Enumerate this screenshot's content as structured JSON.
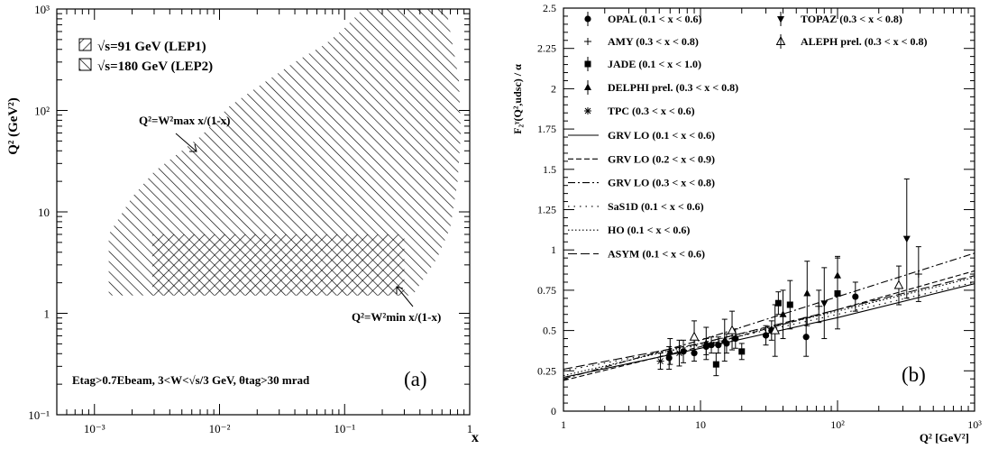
{
  "chart_data": [
    {
      "type": "area",
      "panel_label": "(a)",
      "xlabel": "x",
      "ylabel": "Q² (GeV²)",
      "x_scale": "log",
      "y_scale": "log",
      "xlim": [
        0.0005,
        1
      ],
      "ylim": [
        0.1,
        1000
      ],
      "x_ticks": [
        0.001,
        0.01,
        0.1,
        1
      ],
      "y_ticks": [
        0.1,
        1,
        10,
        100,
        1000
      ],
      "x_tick_labels": [
        "10⁻³",
        "10⁻²",
        "10⁻¹",
        "1"
      ],
      "y_tick_labels": [
        "10⁻¹",
        "1",
        "10",
        "10²",
        "10³"
      ],
      "legend": [
        {
          "label": "√s=91 GeV (LEP1)",
          "hatch": "backslash"
        },
        {
          "label": "√s=180 GeV (LEP2)",
          "hatch": "slash"
        }
      ],
      "annotations": {
        "upper_curve": "Q²=W²max x/(1-x)",
        "lower_curve": "Q²=W²min x/(1-x)",
        "cuts": "Etag>0.7Ebeam, 3<W<√s/3 GeV, θtag>30 mrad"
      },
      "series": [
        {
          "name": "√s=91 GeV (LEP1)",
          "hatch": "backslash",
          "boundary": [
            {
              "x": 0.0029,
              "y": 1.5
            },
            {
              "x": 0.3,
              "y": 1.5
            },
            {
              "x": 0.3,
              "y": 6
            },
            {
              "x": 0.0029,
              "y": 6
            }
          ]
        },
        {
          "name": "√s=180 GeV (LEP2)",
          "hatch": "slash",
          "boundary": [
            {
              "x": 0.0013,
              "y": 1.5
            },
            {
              "x": 0.0013,
              "y": 6
            },
            {
              "x": 0.002,
              "y": 14
            },
            {
              "x": 0.003,
              "y": 25
            },
            {
              "x": 0.007,
              "y": 55
            },
            {
              "x": 0.012,
              "y": 110
            },
            {
              "x": 0.02,
              "y": 170
            },
            {
              "x": 0.04,
              "y": 300
            },
            {
              "x": 0.07,
              "y": 450
            },
            {
              "x": 0.1,
              "y": 650
            },
            {
              "x": 0.14,
              "y": 1000
            },
            {
              "x": 0.65,
              "y": 1000
            },
            {
              "x": 0.82,
              "y": 200
            },
            {
              "x": 0.85,
              "y": 60
            },
            {
              "x": 0.8,
              "y": 20
            },
            {
              "x": 0.7,
              "y": 7
            },
            {
              "x": 0.55,
              "y": 3.5
            },
            {
              "x": 0.35,
              "y": 1.5
            }
          ]
        }
      ]
    },
    {
      "type": "scatter",
      "panel_label": "(b)",
      "xlabel": "Q² [GeV²]",
      "ylabel": "F₂ᵞ(Q²,udsc) / α",
      "x_scale": "log",
      "y_scale": "linear",
      "xlim": [
        1,
        1000
      ],
      "ylim": [
        0,
        2.5
      ],
      "x_ticks": [
        1,
        10,
        100,
        1000
      ],
      "x_tick_labels": [
        "1",
        "10",
        "10²",
        "10³"
      ],
      "y_ticks": [
        0,
        0.25,
        0.5,
        0.75,
        1,
        1.25,
        1.5,
        1.75,
        2,
        2.25,
        2.5
      ],
      "y_tick_labels": [
        "0",
        "0.25",
        "0.5",
        "0.75",
        "1",
        "1.25",
        "1.5",
        "1.75",
        "2",
        "2.25",
        "2.5"
      ],
      "series": [
        {
          "name": "OPAL (0.1 < x < 0.6)",
          "marker": "circle",
          "points": [
            {
              "x": 5.9,
              "y": 0.33,
              "err": 0.07
            },
            {
              "x": 7.5,
              "y": 0.37,
              "err": 0.07
            },
            {
              "x": 9.0,
              "y": 0.36,
              "err": 0.05
            },
            {
              "x": 11.0,
              "y": 0.4,
              "err": 0.05
            },
            {
              "x": 12.0,
              "y": 0.41,
              "err": 0.05
            },
            {
              "x": 13.5,
              "y": 0.41,
              "err": 0.05
            },
            {
              "x": 15.5,
              "y": 0.42,
              "err": 0.06
            },
            {
              "x": 18.0,
              "y": 0.45,
              "err": 0.06
            },
            {
              "x": 30.0,
              "y": 0.47,
              "err": 0.06
            },
            {
              "x": 33.0,
              "y": 0.5,
              "err": 0.06
            },
            {
              "x": 59.0,
              "y": 0.46,
              "err": 0.12
            },
            {
              "x": 135.0,
              "y": 0.71,
              "err": 0.09
            }
          ]
        },
        {
          "name": "AMY (0.3 < x < 0.8)",
          "marker": "plus",
          "points": [
            {
              "x": 73.0,
              "y": 0.65,
              "err": 0.1
            },
            {
              "x": 390.0,
              "y": 0.85,
              "err": 0.17
            }
          ]
        },
        {
          "name": "JADE (0.1 < x < 1.0)",
          "marker": "square",
          "points": [
            {
              "x": 13.0,
              "y": 0.29,
              "err": 0.07
            },
            {
              "x": 20.0,
              "y": 0.37,
              "err": 0.05
            },
            {
              "x": 37.0,
              "y": 0.67,
              "err": 0.07
            },
            {
              "x": 45.0,
              "y": 0.66,
              "err": 0.15
            },
            {
              "x": 100.0,
              "y": 0.73,
              "err": 0.22
            }
          ]
        },
        {
          "name": "DELPHI prel. (0.3 < x < 0.8)",
          "marker": "triangle-up",
          "points": [
            {
              "x": 6.0,
              "y": 0.37,
              "err": 0.08
            },
            {
              "x": 11.0,
              "y": 0.42,
              "err": 0.1
            },
            {
              "x": 15.0,
              "y": 0.44,
              "err": 0.13
            },
            {
              "x": 40.0,
              "y": 0.6,
              "err": 0.15
            },
            {
              "x": 60.0,
              "y": 0.73,
              "err": 0.2
            },
            {
              "x": 100.0,
              "y": 0.84,
              "err": 0.12
            }
          ]
        },
        {
          "name": "TPC (0.3 < x < 0.6)",
          "marker": "asterisk",
          "points": [
            {
              "x": 5.1,
              "y": 0.31,
              "err": 0.05
            },
            {
              "x": 7.0,
              "y": 0.36,
              "err": 0.08
            }
          ]
        },
        {
          "name": "TOPAZ (0.3 < x < 0.8)",
          "marker": "triangle-down",
          "points": [
            {
              "x": 80.0,
              "y": 0.67,
              "err": 0.22
            },
            {
              "x": 320.0,
              "y": 1.07,
              "err": 0.37
            }
          ]
        },
        {
          "name": "ALEPH prel. (0.3 < x < 0.8)",
          "marker": "triangle-open",
          "points": [
            {
              "x": 9.0,
              "y": 0.46,
              "err": 0.1
            },
            {
              "x": 17.0,
              "y": 0.5,
              "err": 0.12
            },
            {
              "x": 35.0,
              "y": 0.5,
              "err": 0.16
            },
            {
              "x": 280.0,
              "y": 0.78,
              "err": 0.12
            }
          ]
        }
      ],
      "curves": [
        {
          "name": "GRV LO (0.1 < x < 0.6)",
          "dash": "solid",
          "points": [
            {
              "x": 1,
              "y": 0.21
            },
            {
              "x": 10,
              "y": 0.39
            },
            {
              "x": 100,
              "y": 0.58
            },
            {
              "x": 1000,
              "y": 0.79
            }
          ]
        },
        {
          "name": "GRV LO (0.2 < x < 0.9)",
          "dash": "dash",
          "points": [
            {
              "x": 1,
              "y": 0.19
            },
            {
              "x": 10,
              "y": 0.4
            },
            {
              "x": 100,
              "y": 0.63
            },
            {
              "x": 1000,
              "y": 0.87
            }
          ]
        },
        {
          "name": "GRV LO (0.3 < x < 0.8)",
          "dash": "dashdot",
          "points": [
            {
              "x": 1,
              "y": 0.2
            },
            {
              "x": 10,
              "y": 0.44
            },
            {
              "x": 100,
              "y": 0.71
            },
            {
              "x": 1000,
              "y": 0.98
            }
          ]
        },
        {
          "name": "SaS1D (0.1 < x < 0.6)",
          "dash": "sparse-dot",
          "points": [
            {
              "x": 1,
              "y": 0.25
            },
            {
              "x": 10,
              "y": 0.41
            },
            {
              "x": 100,
              "y": 0.6
            },
            {
              "x": 1000,
              "y": 0.8
            }
          ]
        },
        {
          "name": "HO (0.1 < x < 0.6)",
          "dash": "dot",
          "points": [
            {
              "x": 1,
              "y": 0.22
            },
            {
              "x": 10,
              "y": 0.42
            },
            {
              "x": 100,
              "y": 0.62
            },
            {
              "x": 1000,
              "y": 0.83
            }
          ]
        },
        {
          "name": "ASYM (0.1 < x < 0.6)",
          "dash": "longdash",
          "points": [
            {
              "x": 1,
              "y": 0.26
            },
            {
              "x": 10,
              "y": 0.42
            },
            {
              "x": 100,
              "y": 0.63
            },
            {
              "x": 1000,
              "y": 0.84
            }
          ]
        }
      ]
    }
  ]
}
